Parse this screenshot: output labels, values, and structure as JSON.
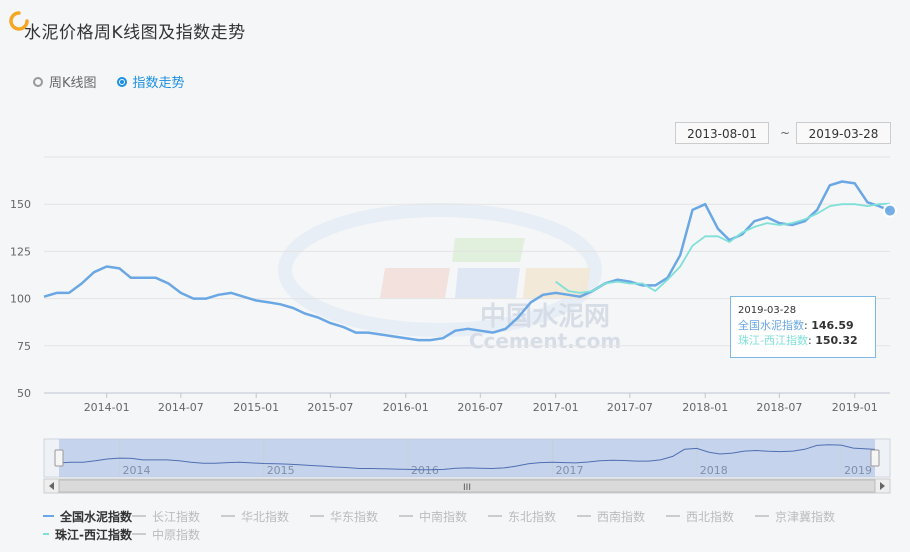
{
  "header": {
    "title": "水泥价格周K线图及指数走势"
  },
  "tabs": [
    {
      "label": "周K线图",
      "active": false
    },
    {
      "label": "指数走势",
      "active": true
    }
  ],
  "date_range": {
    "start": "2013-08-01",
    "separator": "~",
    "end": "2019-03-28"
  },
  "tooltip": {
    "date": "2019-03-28",
    "rows": [
      {
        "name": "全国水泥指数",
        "value": "146.59",
        "color": "#6aa7e4"
      },
      {
        "name": "珠江-西江指数",
        "value": "150.32",
        "color": "#7fe0d8"
      }
    ]
  },
  "watermark": {
    "line1": "中国水泥网",
    "line2": "Ccement.com"
  },
  "navigator": {
    "years": [
      "2014",
      "2015",
      "2016",
      "2017",
      "2018",
      "2019"
    ],
    "scroll_label": "III"
  },
  "legend": {
    "row1": [
      {
        "label": "全国水泥指数",
        "color": "#6aa7e4",
        "on": true
      },
      {
        "label": "长江指数",
        "on": false
      },
      {
        "label": "华北指数",
        "on": false
      },
      {
        "label": "华东指数",
        "on": false
      },
      {
        "label": "中南指数",
        "on": false
      },
      {
        "label": "东北指数",
        "on": false
      },
      {
        "label": "西南指数",
        "on": false
      },
      {
        "label": "西北指数",
        "on": false
      },
      {
        "label": "京津冀指数",
        "on": false
      }
    ],
    "row2": [
      {
        "label": "珠江-西江指数",
        "color": "#7fe0d8",
        "on": true
      },
      {
        "label": "中原指数",
        "on": false
      }
    ]
  },
  "chart_data": {
    "type": "line",
    "x_range": [
      "2013-08-01",
      "2019-03-28"
    ],
    "xticks": [
      "2014-01",
      "2014-07",
      "2015-01",
      "2015-07",
      "2016-01",
      "2016-07",
      "2017-01",
      "2017-07",
      "2018-01",
      "2018-07",
      "2019-01"
    ],
    "yticks": [
      50,
      75,
      100,
      125,
      150
    ],
    "ylim": [
      50,
      175
    ],
    "series": [
      {
        "name": "全国水泥指数",
        "color": "#6aa7e4",
        "points": [
          [
            "2013-08-01",
            101
          ],
          [
            "2013-09-01",
            103
          ],
          [
            "2013-10-01",
            103
          ],
          [
            "2013-11-01",
            108
          ],
          [
            "2013-12-01",
            114
          ],
          [
            "2014-01-01",
            117
          ],
          [
            "2014-02-01",
            116
          ],
          [
            "2014-03-01",
            111
          ],
          [
            "2014-04-01",
            111
          ],
          [
            "2014-05-01",
            111
          ],
          [
            "2014-06-01",
            108
          ],
          [
            "2014-07-01",
            103
          ],
          [
            "2014-08-01",
            100
          ],
          [
            "2014-09-01",
            100
          ],
          [
            "2014-10-01",
            102
          ],
          [
            "2014-11-01",
            103
          ],
          [
            "2014-12-01",
            101
          ],
          [
            "2015-01-01",
            99
          ],
          [
            "2015-02-01",
            98
          ],
          [
            "2015-03-01",
            97
          ],
          [
            "2015-04-01",
            95
          ],
          [
            "2015-05-01",
            92
          ],
          [
            "2015-06-01",
            90
          ],
          [
            "2015-07-01",
            87
          ],
          [
            "2015-08-01",
            85
          ],
          [
            "2015-09-01",
            82
          ],
          [
            "2015-10-01",
            82
          ],
          [
            "2015-11-01",
            81
          ],
          [
            "2015-12-01",
            80
          ],
          [
            "2016-01-01",
            79
          ],
          [
            "2016-02-01",
            78
          ],
          [
            "2016-03-01",
            78
          ],
          [
            "2016-04-01",
            79
          ],
          [
            "2016-05-01",
            83
          ],
          [
            "2016-06-01",
            84
          ],
          [
            "2016-07-01",
            83
          ],
          [
            "2016-08-01",
            82
          ],
          [
            "2016-09-01",
            84
          ],
          [
            "2016-10-01",
            90
          ],
          [
            "2016-11-01",
            98
          ],
          [
            "2016-12-01",
            102
          ],
          [
            "2017-01-01",
            103
          ],
          [
            "2017-02-01",
            102
          ],
          [
            "2017-03-01",
            101
          ],
          [
            "2017-04-01",
            104
          ],
          [
            "2017-05-01",
            108
          ],
          [
            "2017-06-01",
            110
          ],
          [
            "2017-07-01",
            109
          ],
          [
            "2017-08-01",
            107
          ],
          [
            "2017-09-01",
            107
          ],
          [
            "2017-10-01",
            111
          ],
          [
            "2017-11-01",
            123
          ],
          [
            "2017-12-01",
            147
          ],
          [
            "2018-01-01",
            150
          ],
          [
            "2018-02-01",
            137
          ],
          [
            "2018-03-01",
            131
          ],
          [
            "2018-04-01",
            134
          ],
          [
            "2018-05-01",
            141
          ],
          [
            "2018-06-01",
            143
          ],
          [
            "2018-07-01",
            140
          ],
          [
            "2018-08-01",
            139
          ],
          [
            "2018-09-01",
            141
          ],
          [
            "2018-10-01",
            147
          ],
          [
            "2018-11-01",
            160
          ],
          [
            "2018-12-01",
            162
          ],
          [
            "2019-01-01",
            161
          ],
          [
            "2019-02-01",
            151
          ],
          [
            "2019-03-01",
            149
          ],
          [
            "2019-03-28",
            146.59
          ]
        ]
      },
      {
        "name": "珠江-西江指数",
        "color": "#7fe0d8",
        "points": [
          [
            "2017-01-01",
            109
          ],
          [
            "2017-02-01",
            104
          ],
          [
            "2017-03-01",
            103
          ],
          [
            "2017-04-01",
            104
          ],
          [
            "2017-05-01",
            108
          ],
          [
            "2017-06-01",
            109
          ],
          [
            "2017-07-01",
            108
          ],
          [
            "2017-08-01",
            108
          ],
          [
            "2017-09-01",
            104
          ],
          [
            "2017-10-01",
            110
          ],
          [
            "2017-11-01",
            117
          ],
          [
            "2017-12-01",
            128
          ],
          [
            "2018-01-01",
            133
          ],
          [
            "2018-02-01",
            133
          ],
          [
            "2018-03-01",
            130
          ],
          [
            "2018-04-01",
            135
          ],
          [
            "2018-05-01",
            138
          ],
          [
            "2018-06-01",
            140
          ],
          [
            "2018-07-01",
            139
          ],
          [
            "2018-08-01",
            140
          ],
          [
            "2018-09-01",
            142
          ],
          [
            "2018-10-01",
            145
          ],
          [
            "2018-11-01",
            149
          ],
          [
            "2018-12-01",
            150
          ],
          [
            "2019-01-01",
            150
          ],
          [
            "2019-02-01",
            149
          ],
          [
            "2019-03-01",
            150
          ],
          [
            "2019-03-28",
            150.32
          ]
        ]
      }
    ]
  }
}
